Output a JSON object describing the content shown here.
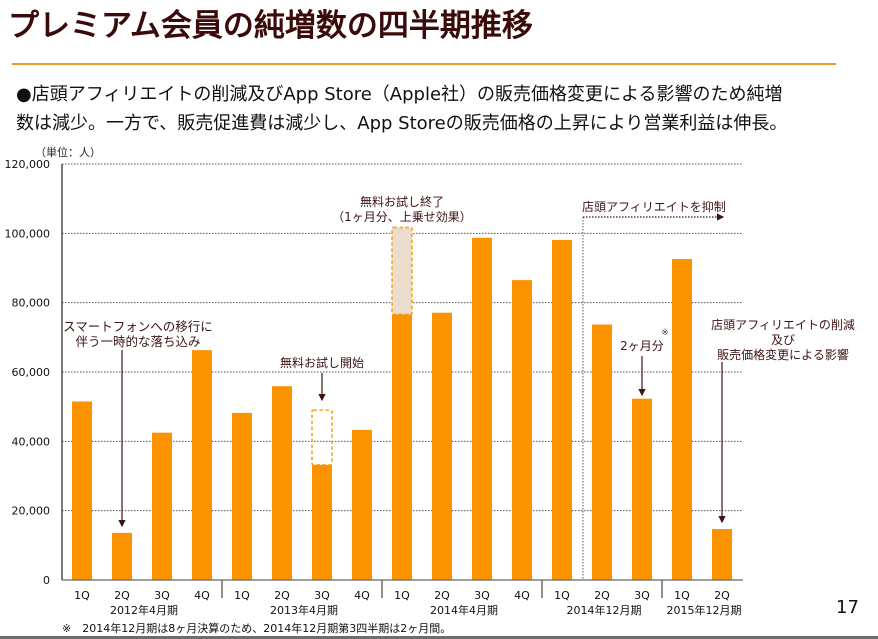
{
  "slide": {
    "title": "プレミアム会員の純増数の四半期推移",
    "body_lines": [
      "●店頭アフィリエイトの削減及びApp Store（Apple社）の販売価格変更による影響のため純増",
      "数は減少。一方で、販売促進費は減少し、App Storeの販売価格の上昇により営業利益は伸長。"
    ],
    "footnote": "※　2014年12月期は8ヶ月決算のため、2014年12月期第3四半期は2ヶ月間。",
    "page_number": "17",
    "colors": {
      "title": "#3b0b0b",
      "rule": "#e89a2a",
      "bar": "#fb9200",
      "ghost_fill": "#ecdccb",
      "ghost_stroke": "#f5a623",
      "annotation": "#3b1414"
    }
  },
  "chart_data": {
    "type": "bar",
    "title": "",
    "unit_label": "（単位：人）",
    "xlabel": "",
    "ylabel": "",
    "ylim": [
      0,
      120000
    ],
    "yticks": [
      0,
      20000,
      40000,
      60000,
      80000,
      100000,
      120000
    ],
    "ytick_labels": [
      "0",
      "20,000",
      "40,000",
      "60,000",
      "80,000",
      "100,000",
      "120,000"
    ],
    "grid": true,
    "legend": "none",
    "groups": [
      {
        "label": "2012年4月期",
        "start": 0,
        "end": 3
      },
      {
        "label": "2013年4月期",
        "start": 4,
        "end": 7
      },
      {
        "label": "2014年4月期",
        "start": 8,
        "end": 11
      },
      {
        "label": "2014年12月期",
        "start": 12,
        "end": 14
      },
      {
        "label": "2015年12月期",
        "start": 15,
        "end": 16
      }
    ],
    "categories": [
      "1Q",
      "2Q",
      "3Q",
      "4Q",
      "1Q",
      "2Q",
      "3Q",
      "4Q",
      "1Q",
      "2Q",
      "3Q",
      "4Q",
      "1Q",
      "2Q",
      "3Q",
      "1Q",
      "2Q"
    ],
    "values": [
      51500,
      13600,
      42500,
      66300,
      48200,
      55900,
      33200,
      43300,
      76600,
      77100,
      98700,
      86500,
      98100,
      73700,
      52300,
      92600,
      14700
    ],
    "ghost_bars": [
      {
        "index": 6,
        "value": 49000,
        "style": "dashed-outline"
      },
      {
        "index": 8,
        "value": 101700,
        "style": "dashed-filled"
      }
    ],
    "annotations": [
      {
        "id": "smartphone",
        "lines": [
          "スマートフォンへの移行に",
          "伴う一時的な落ち込み"
        ],
        "target_index": 1
      },
      {
        "id": "trial_start",
        "lines": [
          "無料お試し開始"
        ],
        "target_index": 6
      },
      {
        "id": "trial_end",
        "lines": [
          "無料お試し終了",
          "（1ヶ月分、上乗せ効果）"
        ],
        "target_index": 8
      },
      {
        "id": "affiliate_restrict",
        "lines": [
          "店頭アフィリエイトを抑制"
        ],
        "target_index": 13
      },
      {
        "id": "two_months",
        "lines": [
          "2ヶ月分"
        ],
        "mark": "※",
        "target_index": 14
      },
      {
        "id": "affiliate_cut",
        "lines": [
          "店頭アフィリエイトの削減",
          "及び",
          "販売価格変更による影響"
        ],
        "target_index": 16
      }
    ]
  }
}
